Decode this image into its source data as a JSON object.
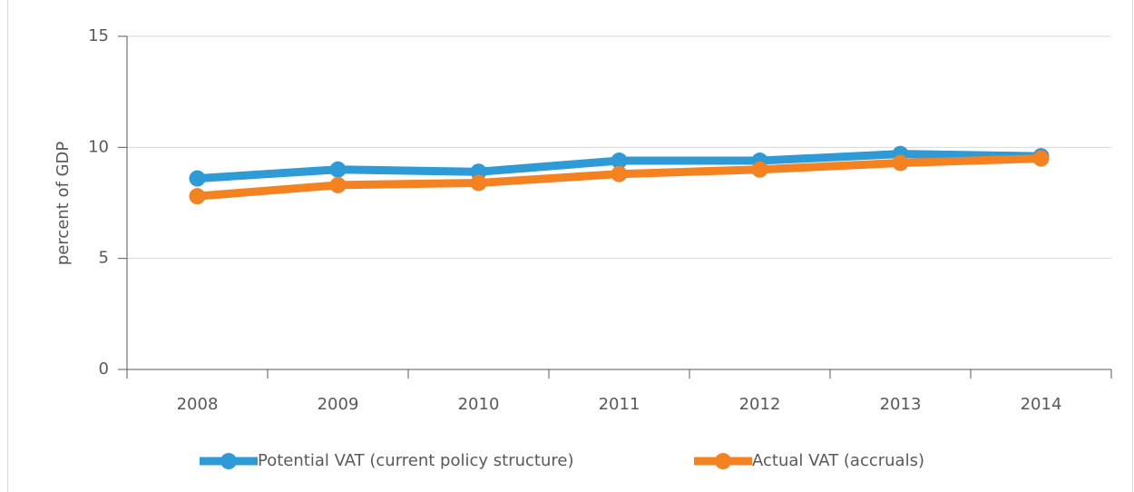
{
  "chart_data": {
    "type": "line",
    "y_label": "percent of GDP",
    "categories": [
      "2008",
      "2009",
      "2010",
      "2011",
      "2012",
      "2013",
      "2014"
    ],
    "series": [
      {
        "name": "Potential VAT (current policy structure)",
        "color": "#2e9bd6",
        "values": [
          8.6,
          9.0,
          8.9,
          9.4,
          9.4,
          9.7,
          9.6
        ]
      },
      {
        "name": "Actual VAT (accruals)",
        "color": "#f58220",
        "values": [
          7.8,
          8.3,
          8.4,
          8.8,
          9.0,
          9.3,
          9.5
        ]
      }
    ],
    "ylim": [
      0,
      15
    ],
    "yticks": [
      0,
      5,
      10,
      15
    ],
    "grid": true,
    "legend": "bottom"
  }
}
